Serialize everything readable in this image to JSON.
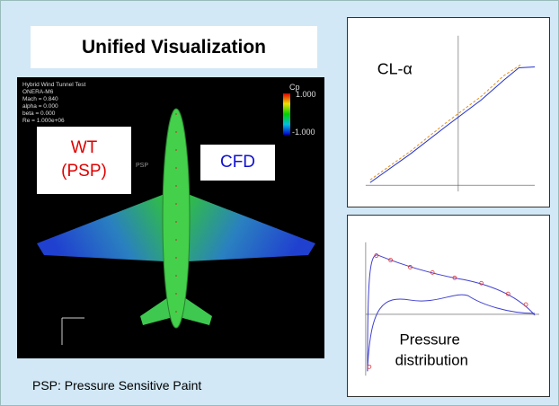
{
  "header": {
    "title": "Unified Visualization"
  },
  "viewer": {
    "info": [
      "Hybrid Wind Tunnel Test",
      "ONERA-M6",
      "Mach = 0.840",
      "alpha = 0.000",
      "beta = 0.000",
      "Re = 1.000e+06"
    ],
    "colorbar": {
      "title": "Cp",
      "max": "1.000",
      "min": "-1.000"
    },
    "labels": {
      "wt": [
        "WT",
        "(PSP)"
      ],
      "cfd": "CFD",
      "psp": "PSP"
    }
  },
  "footnote": "PSP: Pressure Sensitive Paint",
  "panels": [
    {
      "label": "CL-α"
    },
    {
      "label": [
        "Pressure",
        "distribution"
      ]
    }
  ]
}
